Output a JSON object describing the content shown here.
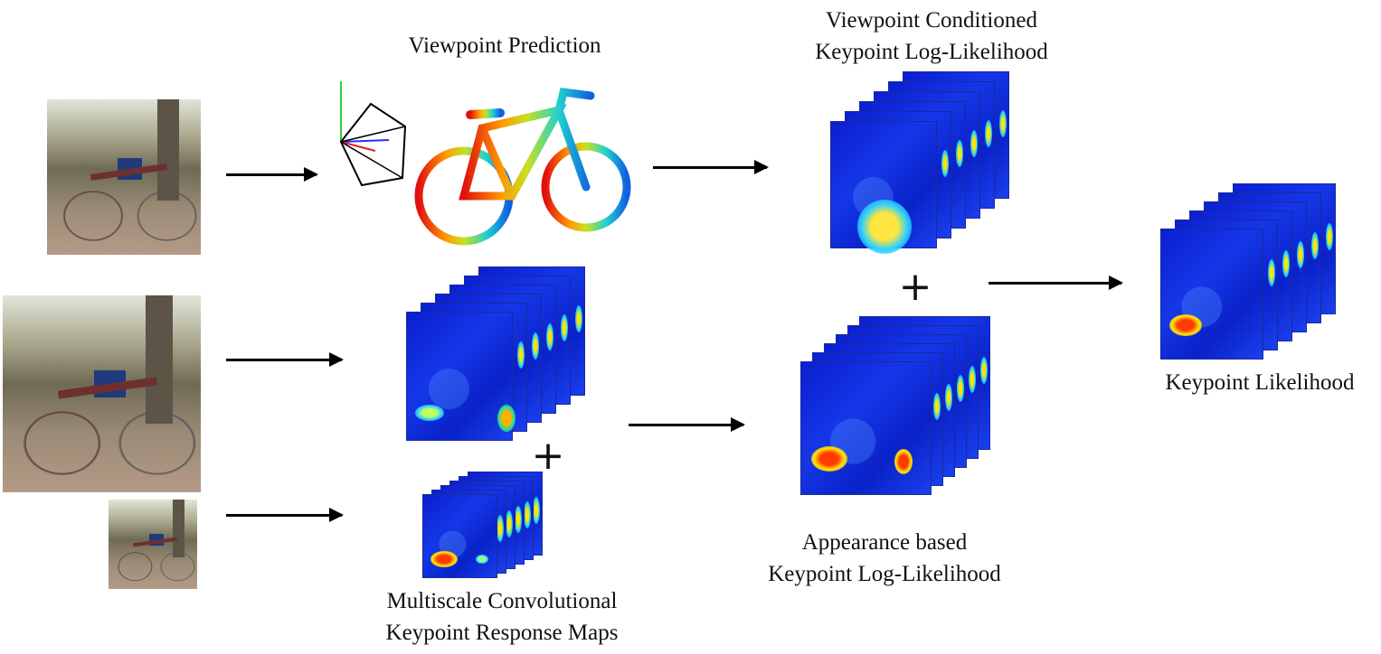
{
  "labels": {
    "viewpoint_prediction": "Viewpoint Prediction",
    "viewpoint_conditioned_line1": "Viewpoint Conditioned",
    "viewpoint_conditioned_line2": "Keypoint Log-Likelihood",
    "keypoint_likelihood": "Keypoint Likelihood",
    "appearance_line1": "Appearance based",
    "appearance_line2": "Keypoint Log-Likelihood",
    "multiscale_line1": "Multiscale Convolutional",
    "multiscale_line2": "Keypoint Response Maps"
  },
  "operators": {
    "plus": "+"
  },
  "colors": {
    "heatmap_base": "#0b1fd0",
    "hot": "#ff3b00",
    "warm": "#ffe600",
    "arrow": "#000000"
  }
}
